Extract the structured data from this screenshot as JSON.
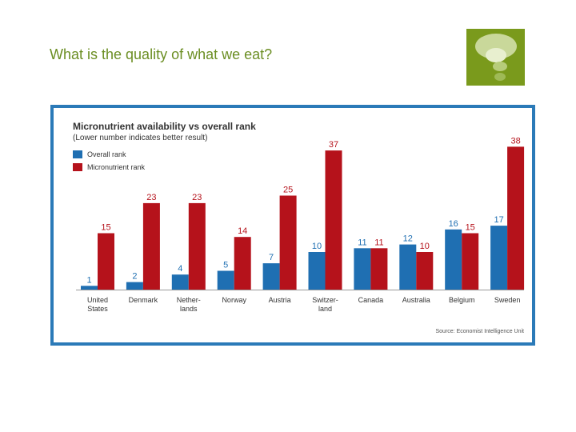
{
  "slide": {
    "title": "What is the quality of what we eat?"
  },
  "logo": {
    "icon": "green-speech-bubble-icon"
  },
  "colors": {
    "overall": "#1f6fb2",
    "micronutrient": "#b5121b",
    "frame": "#2b7ab8",
    "title_green": "#6b8e23",
    "logo_green": "#7a9a1c"
  },
  "chart_data": {
    "type": "bar",
    "title": "Micronutrient availability vs overall rank",
    "subtitle": "(Lower number indicates better result)",
    "categories": [
      "United States",
      "Denmark",
      "Nether-lands",
      "Norway",
      "Austria",
      "Switzer-land",
      "Canada",
      "Australia",
      "Belgium",
      "Sweden"
    ],
    "category_lines": [
      [
        "United",
        "States"
      ],
      [
        "Denmark"
      ],
      [
        "Nether-",
        "lands"
      ],
      [
        "Norway"
      ],
      [
        "Austria"
      ],
      [
        "Switzer-",
        "land"
      ],
      [
        "Canada"
      ],
      [
        "Australia"
      ],
      [
        "Belgium"
      ],
      [
        "Sweden"
      ]
    ],
    "series": [
      {
        "name": "Overall rank",
        "values": [
          1,
          2,
          4,
          5,
          7,
          10,
          11,
          12,
          16,
          17
        ]
      },
      {
        "name": "Micronutrient rank",
        "values": [
          15,
          23,
          23,
          14,
          25,
          37,
          11,
          10,
          15,
          38
        ]
      }
    ],
    "ylim": [
      0,
      40
    ],
    "grid": false,
    "legend_position": "top-left",
    "source": "Source: Economist Intelligence Unit"
  }
}
